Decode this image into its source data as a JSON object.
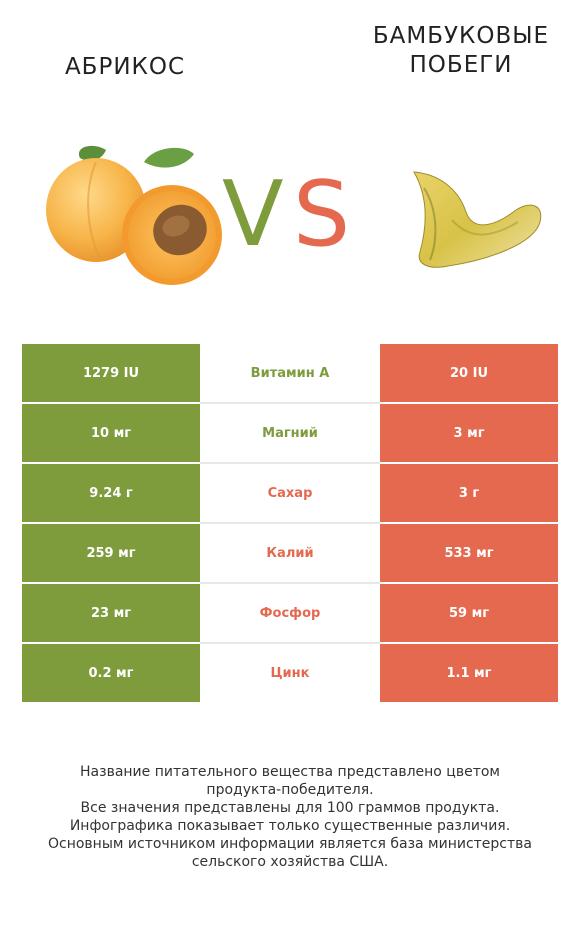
{
  "colors": {
    "left": "#7f9c3c",
    "right": "#e4694f",
    "left_text": "#7f9c3c",
    "right_text": "#e4694f"
  },
  "header": {
    "left_title": "АБРИКОС",
    "right_title": "БАМБУКОВЫЕ\nПОБЕГИ",
    "vs_v": "V",
    "vs_s": "S",
    "left_image": "apricot-image",
    "right_image": "bamboo-shoot-image"
  },
  "rows": [
    {
      "left": "1279 IU",
      "name": "Витамин A",
      "right": "20 IU",
      "winner": "left"
    },
    {
      "left": "10 мг",
      "name": "Магний",
      "right": "3 мг",
      "winner": "left"
    },
    {
      "left": "9.24 г",
      "name": "Сахар",
      "right": "3 г",
      "winner": "right"
    },
    {
      "left": "259 мг",
      "name": "Калий",
      "right": "533 мг",
      "winner": "right"
    },
    {
      "left": "23 мг",
      "name": "Фосфор",
      "right": "59 мг",
      "winner": "right"
    },
    {
      "left": "0.2 мг",
      "name": "Цинк",
      "right": "1.1 мг",
      "winner": "right"
    }
  ],
  "footnote": [
    "Название питательного вещества представлено цветом",
    "продукта-победителя.",
    "Все значения представлены для 100 граммов продукта.",
    "Инфографика показывает только существенные различия.",
    "Основным источником информации является база министерства",
    "сельского хозяйства США."
  ]
}
